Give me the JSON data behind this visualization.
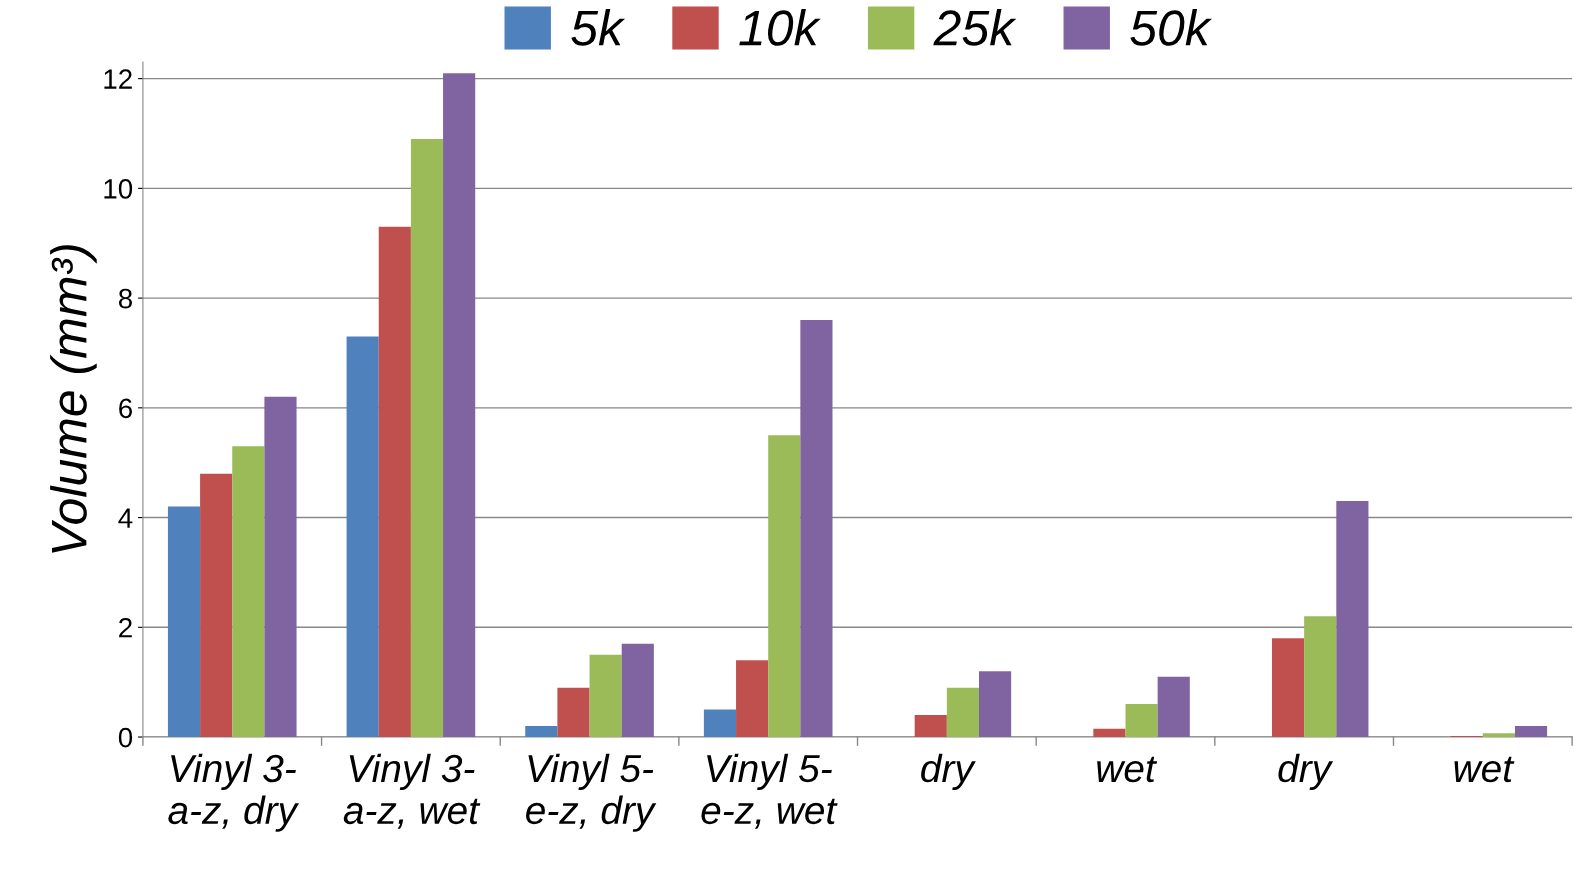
{
  "chart_data": {
    "type": "bar",
    "ylabel": "Volume (mm³)",
    "categories": [
      "Vinyl 3-a-z, dry",
      "Vinyl 3-a-z, wet",
      "Vinyl 5-e-z, dry",
      "Vinyl 5-e-z, wet",
      "dry",
      "wet",
      "dry",
      "wet"
    ],
    "series": [
      {
        "name": "5k",
        "color": "#4f81bd",
        "values": [
          4.2,
          7.3,
          0.2,
          0.5,
          0,
          0,
          0,
          0
        ]
      },
      {
        "name": "10k",
        "color": "#c0504d",
        "values": [
          4.8,
          9.3,
          0.9,
          1.4,
          0.4,
          0.15,
          1.8,
          0.02
        ]
      },
      {
        "name": "25k",
        "color": "#9bbb59",
        "values": [
          5.3,
          10.9,
          1.5,
          5.5,
          0.9,
          0.6,
          2.2,
          0.07
        ]
      },
      {
        "name": "50k",
        "color": "#8064a2",
        "values": [
          6.2,
          12.1,
          1.7,
          7.6,
          1.2,
          1.1,
          4.3,
          0.2
        ]
      }
    ],
    "ylim": [
      0,
      12.3
    ],
    "yticks": [
      0,
      2,
      4,
      6,
      8,
      10,
      12
    ],
    "grid": "y",
    "legend": "top"
  }
}
